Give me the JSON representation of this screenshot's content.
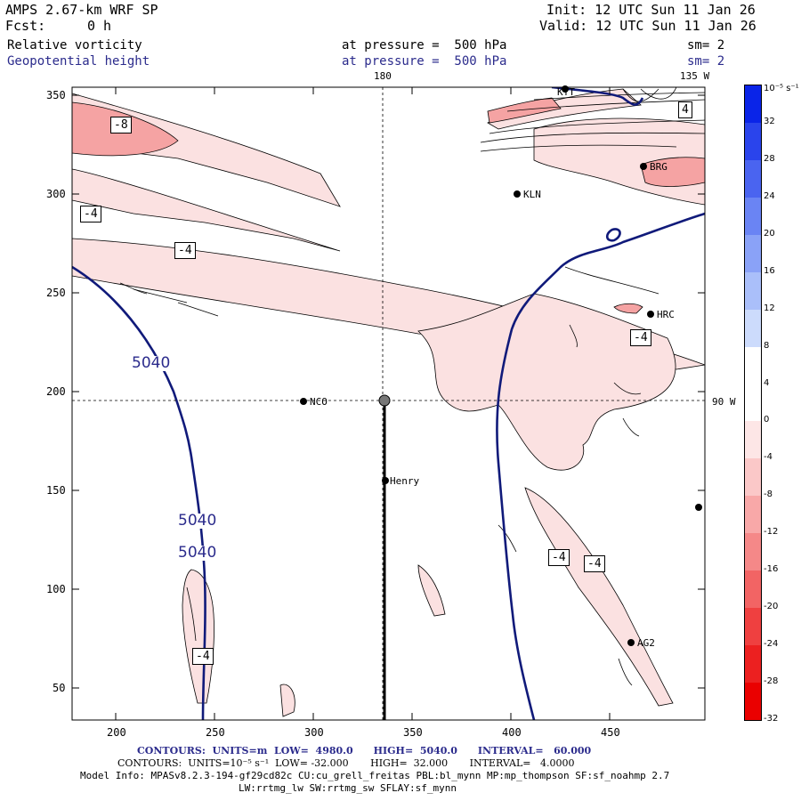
{
  "header": {
    "model": "AMPS 2.67-km WRF SP",
    "fcst_label": "Fcst:",
    "fcst_value": "0 h",
    "init": "Init: 12 UTC Sun 11 Jan 26",
    "valid": "Valid: 12 UTC Sun 11 Jan 26",
    "field1_name": "Relative vorticity",
    "field1_level": "at pressure =  500 hPa",
    "field1_sm": "sm= 2",
    "field2_name": "Geopotential height",
    "field2_level": "at pressure =  500 hPa",
    "field2_sm": "sm= 2"
  },
  "map": {
    "lon_180": "180",
    "lon_135w": "135 W",
    "lon_90w": "90 W",
    "x_ticks": [
      "200",
      "250",
      "300",
      "350",
      "400",
      "450"
    ],
    "y_ticks": [
      "350",
      "300",
      "250",
      "200",
      "150",
      "100",
      "50"
    ],
    "height_labels": [
      "5040",
      "5040",
      "5040"
    ],
    "vort_boxes": [
      "-8",
      "-4",
      "-4",
      "-4",
      "-4",
      "-4",
      "-4",
      "4"
    ],
    "stations": [
      {
        "id": "NCO",
        "label": "NCO"
      },
      {
        "id": "Henry",
        "label": "Henry"
      },
      {
        "id": "KLN",
        "label": "KLN"
      },
      {
        "id": "BRG",
        "label": "BRG"
      },
      {
        "id": "HRC",
        "label": "HRC"
      },
      {
        "id": "AG2",
        "label": "AG2"
      },
      {
        "id": "KTT",
        "label": "KTT"
      }
    ]
  },
  "colorbar": {
    "unit": "10⁻⁵ s⁻¹",
    "labels": [
      "32",
      "28",
      "24",
      "20",
      "16",
      "12",
      "8",
      "4",
      "0",
      "-4",
      "-8",
      "-12",
      "-16",
      "-20",
      "-24",
      "-28",
      "-32"
    ],
    "colors": [
      "#0a24e8",
      "#2a44ec",
      "#4a64f0",
      "#6a84f4",
      "#8aa2f7",
      "#aabffa",
      "#ccdbfc",
      "#ffffff",
      "#ffffff",
      "#fde6e6",
      "#fbc8c8",
      "#f8a8a8",
      "#f58888",
      "#f26464",
      "#ef4040",
      "#ec2020",
      "#ea0000"
    ]
  },
  "footer": {
    "contours1": "CONTOURS:  UNITS=m  LOW=  4980.0      HIGH=  5040.0      INTERVAL=   60.000",
    "contours2": "CONTOURS:  UNITS=10⁻⁵ s⁻¹  LOW= -32.000       HIGH=  32.000       INTERVAL=   4.0000",
    "model_info": "Model Info: MPASv8.2.3-194-gf29cd82c CU:cu_grell_freitas PBL:bl_mynn MP:mp_thompson SF:sf_noahmp 2.7",
    "model_info2": "LW:rrtmg_lw SW:rrtmg_sw SFLAY:sf_mynn"
  }
}
